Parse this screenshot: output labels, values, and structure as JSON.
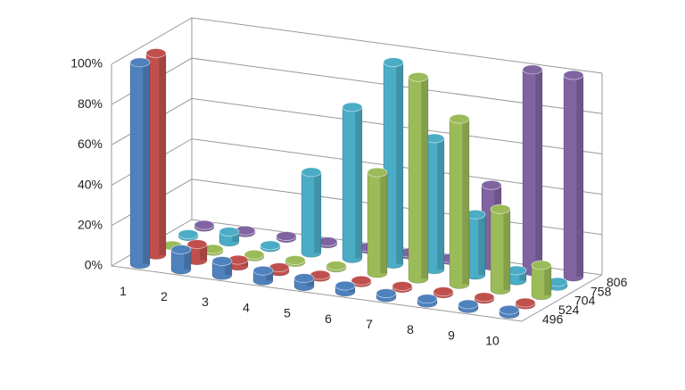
{
  "chart_data": {
    "type": "bar3d",
    "categories": [
      "1",
      "2",
      "3",
      "4",
      "5",
      "6",
      "7",
      "8",
      "9",
      "10"
    ],
    "series": [
      {
        "name": "496",
        "color": "#4f81bd",
        "values": [
          100,
          10,
          7,
          5,
          4,
          3,
          2,
          2,
          2,
          2
        ]
      },
      {
        "name": "524",
        "color": "#c0504d",
        "values": [
          100,
          8,
          3,
          2,
          1,
          1,
          1,
          1,
          1,
          1
        ]
      },
      {
        "name": "704",
        "color": "#9bbb59",
        "values": [
          0,
          1,
          1,
          1,
          1,
          50,
          100,
          82,
          40,
          15
        ]
      },
      {
        "name": "758",
        "color": "#4bacc6",
        "values": [
          1,
          5,
          1,
          40,
          75,
          100,
          65,
          30,
          5,
          2
        ]
      },
      {
        "name": "806",
        "color": "#8064a2",
        "values": [
          1,
          1,
          1,
          1,
          1,
          1,
          1,
          40,
          100,
          100
        ]
      }
    ],
    "ylim": [
      0,
      100
    ],
    "yticks": [
      {
        "value": 0,
        "label": "0%"
      },
      {
        "value": 20,
        "label": "20%"
      },
      {
        "value": 40,
        "label": "40%"
      },
      {
        "value": 60,
        "label": "60%"
      },
      {
        "value": 80,
        "label": "80%"
      },
      {
        "value": 100,
        "label": "100%"
      }
    ],
    "grid": true
  }
}
